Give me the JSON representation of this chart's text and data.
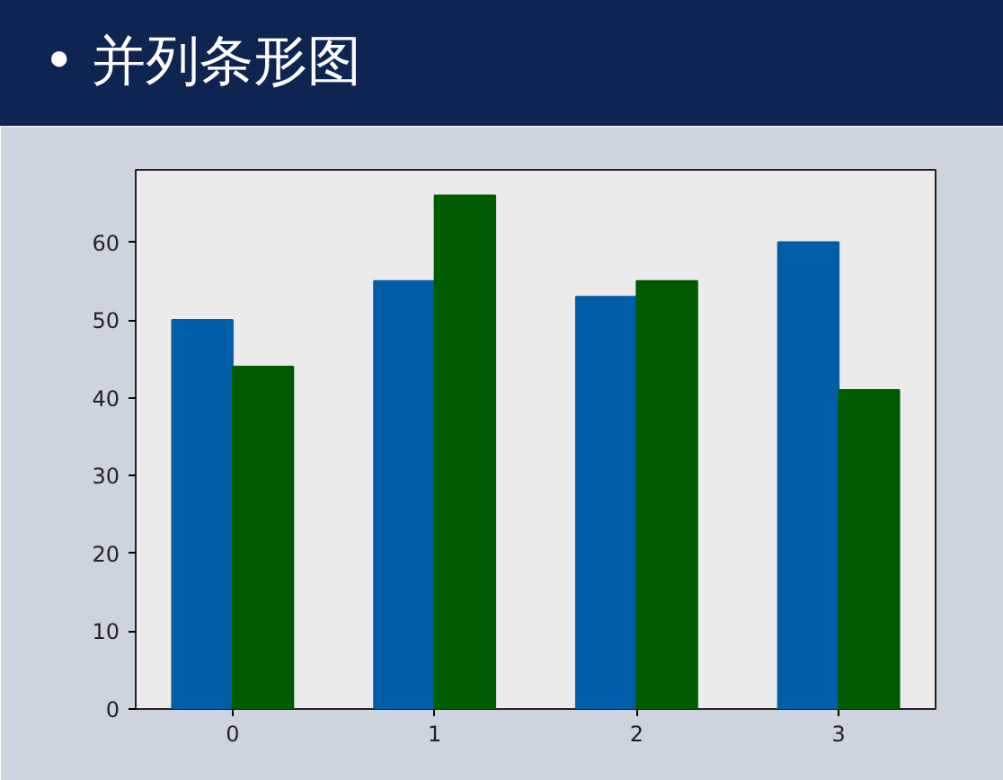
{
  "chart_data": {
    "type": "bar",
    "title": "• 并列条形图",
    "categories": [
      "0",
      "1",
      "2",
      "3"
    ],
    "series": [
      {
        "color": "#005ea8",
        "values": [
          50,
          55,
          53,
          60
        ]
      },
      {
        "color": "#005a00",
        "values": [
          44,
          66,
          55,
          41
        ]
      }
    ],
    "ylim": [
      0,
      69.3
    ],
    "yticks": [
      0,
      10,
      20,
      30,
      40,
      50,
      60
    ],
    "grid": false
  }
}
